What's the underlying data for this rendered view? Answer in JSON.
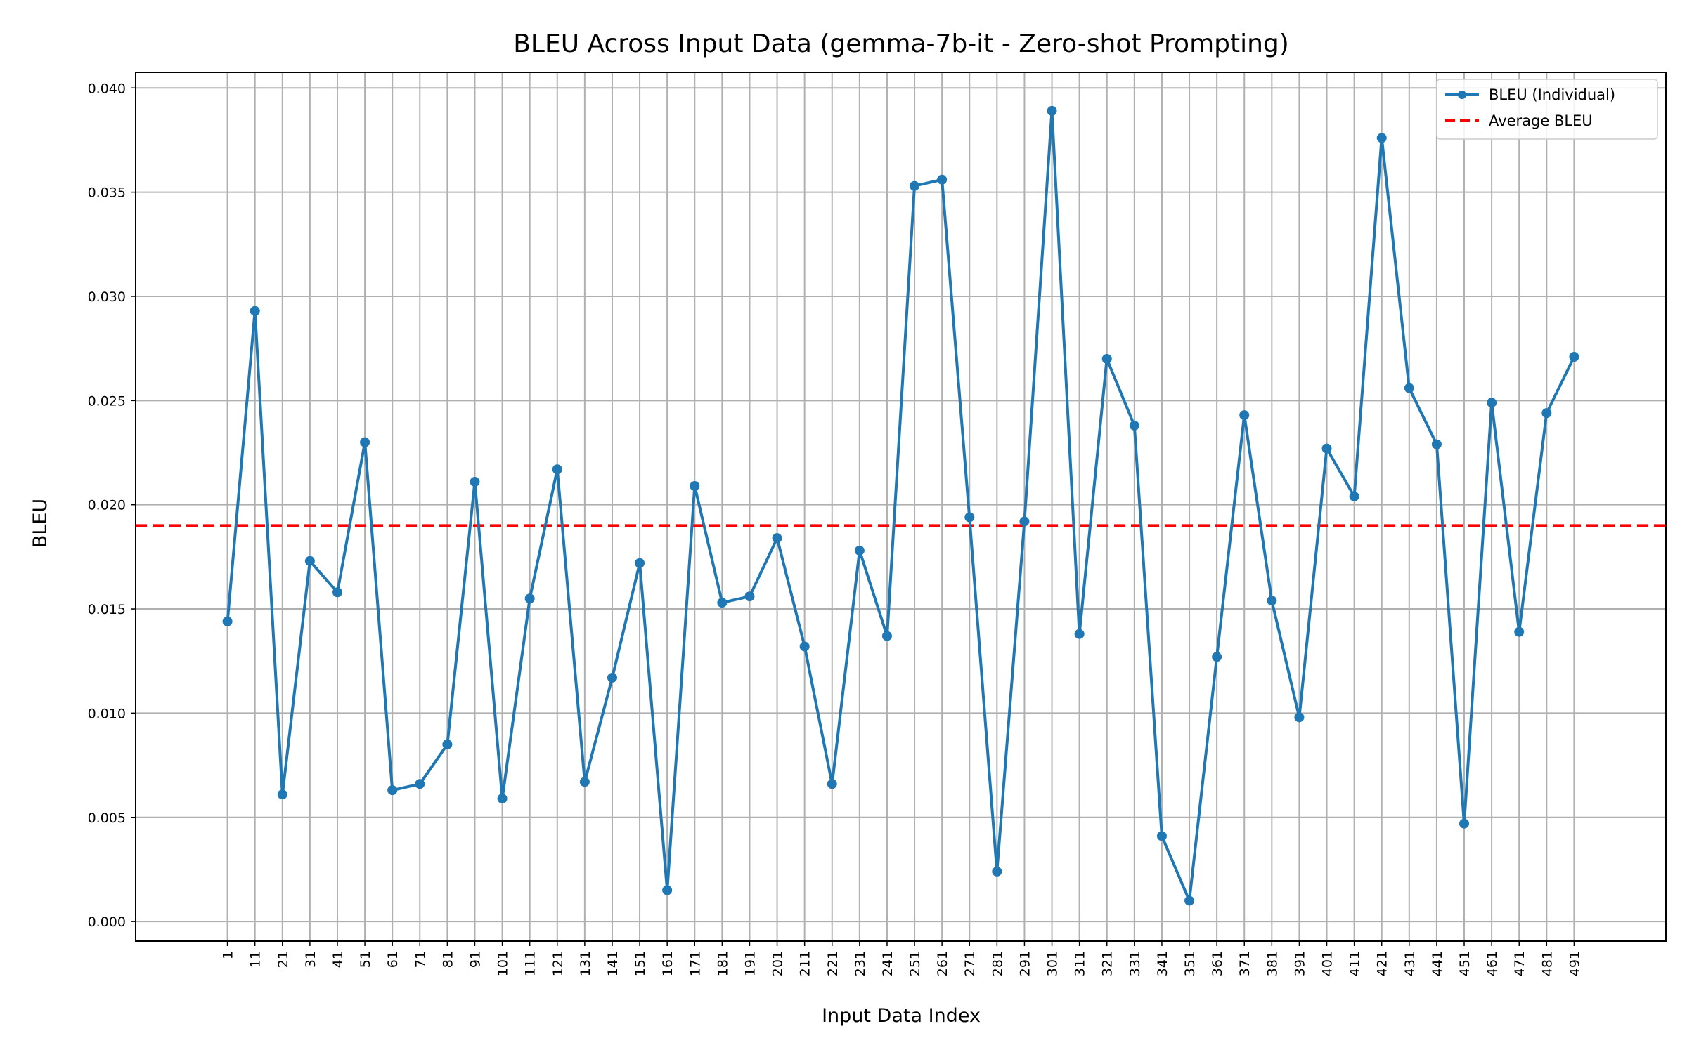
{
  "chart_data": {
    "type": "line",
    "title": "BLEU Across Input Data (gemma-7b-it - Zero-shot Prompting)",
    "xlabel": "Input Data Index",
    "ylabel": "BLEU",
    "x": [
      1,
      11,
      21,
      31,
      41,
      51,
      61,
      71,
      81,
      91,
      101,
      111,
      121,
      131,
      141,
      151,
      161,
      171,
      181,
      191,
      201,
      211,
      221,
      231,
      241,
      251,
      261,
      271,
      281,
      291,
      301,
      311,
      321,
      331,
      341,
      351,
      361,
      371,
      381,
      391,
      401,
      411,
      421,
      431,
      441,
      451,
      461,
      471,
      481,
      491
    ],
    "series": [
      {
        "name": "BLEU (Individual)",
        "color": "#1f77b4",
        "values": [
          0.0144,
          0.0293,
          0.0061,
          0.0173,
          0.0158,
          0.023,
          0.0063,
          0.0066,
          0.0085,
          0.0211,
          0.0059,
          0.0155,
          0.0217,
          0.0067,
          0.0117,
          0.0172,
          0.0015,
          0.0209,
          0.0153,
          0.0156,
          0.0184,
          0.0132,
          0.0066,
          0.0178,
          0.0137,
          0.0353,
          0.0356,
          0.0194,
          0.0024,
          0.0192,
          0.0389,
          0.0138,
          0.027,
          0.0238,
          0.0041,
          0.001,
          0.0127,
          0.0243,
          0.0154,
          0.0098,
          0.0227,
          0.0204,
          0.0376,
          0.0256,
          0.0229,
          0.0047,
          0.0249,
          0.0139,
          0.0244,
          0.0271
        ]
      }
    ],
    "reference_lines": [
      {
        "name": "Average BLEU",
        "value": 0.019,
        "color": "#ff0000",
        "style": "dashed"
      }
    ],
    "yticks": [
      "0.000",
      "0.005",
      "0.010",
      "0.015",
      "0.020",
      "0.025",
      "0.030",
      "0.035",
      "0.040"
    ],
    "ytick_values": [
      0.0,
      0.005,
      0.01,
      0.015,
      0.02,
      0.025,
      0.03,
      0.035,
      0.04
    ],
    "xlim": [
      -32.4,
      524.4
    ],
    "ylim": [
      -0.00094,
      0.04075
    ],
    "grid": true,
    "legend_position": "upper-right"
  }
}
